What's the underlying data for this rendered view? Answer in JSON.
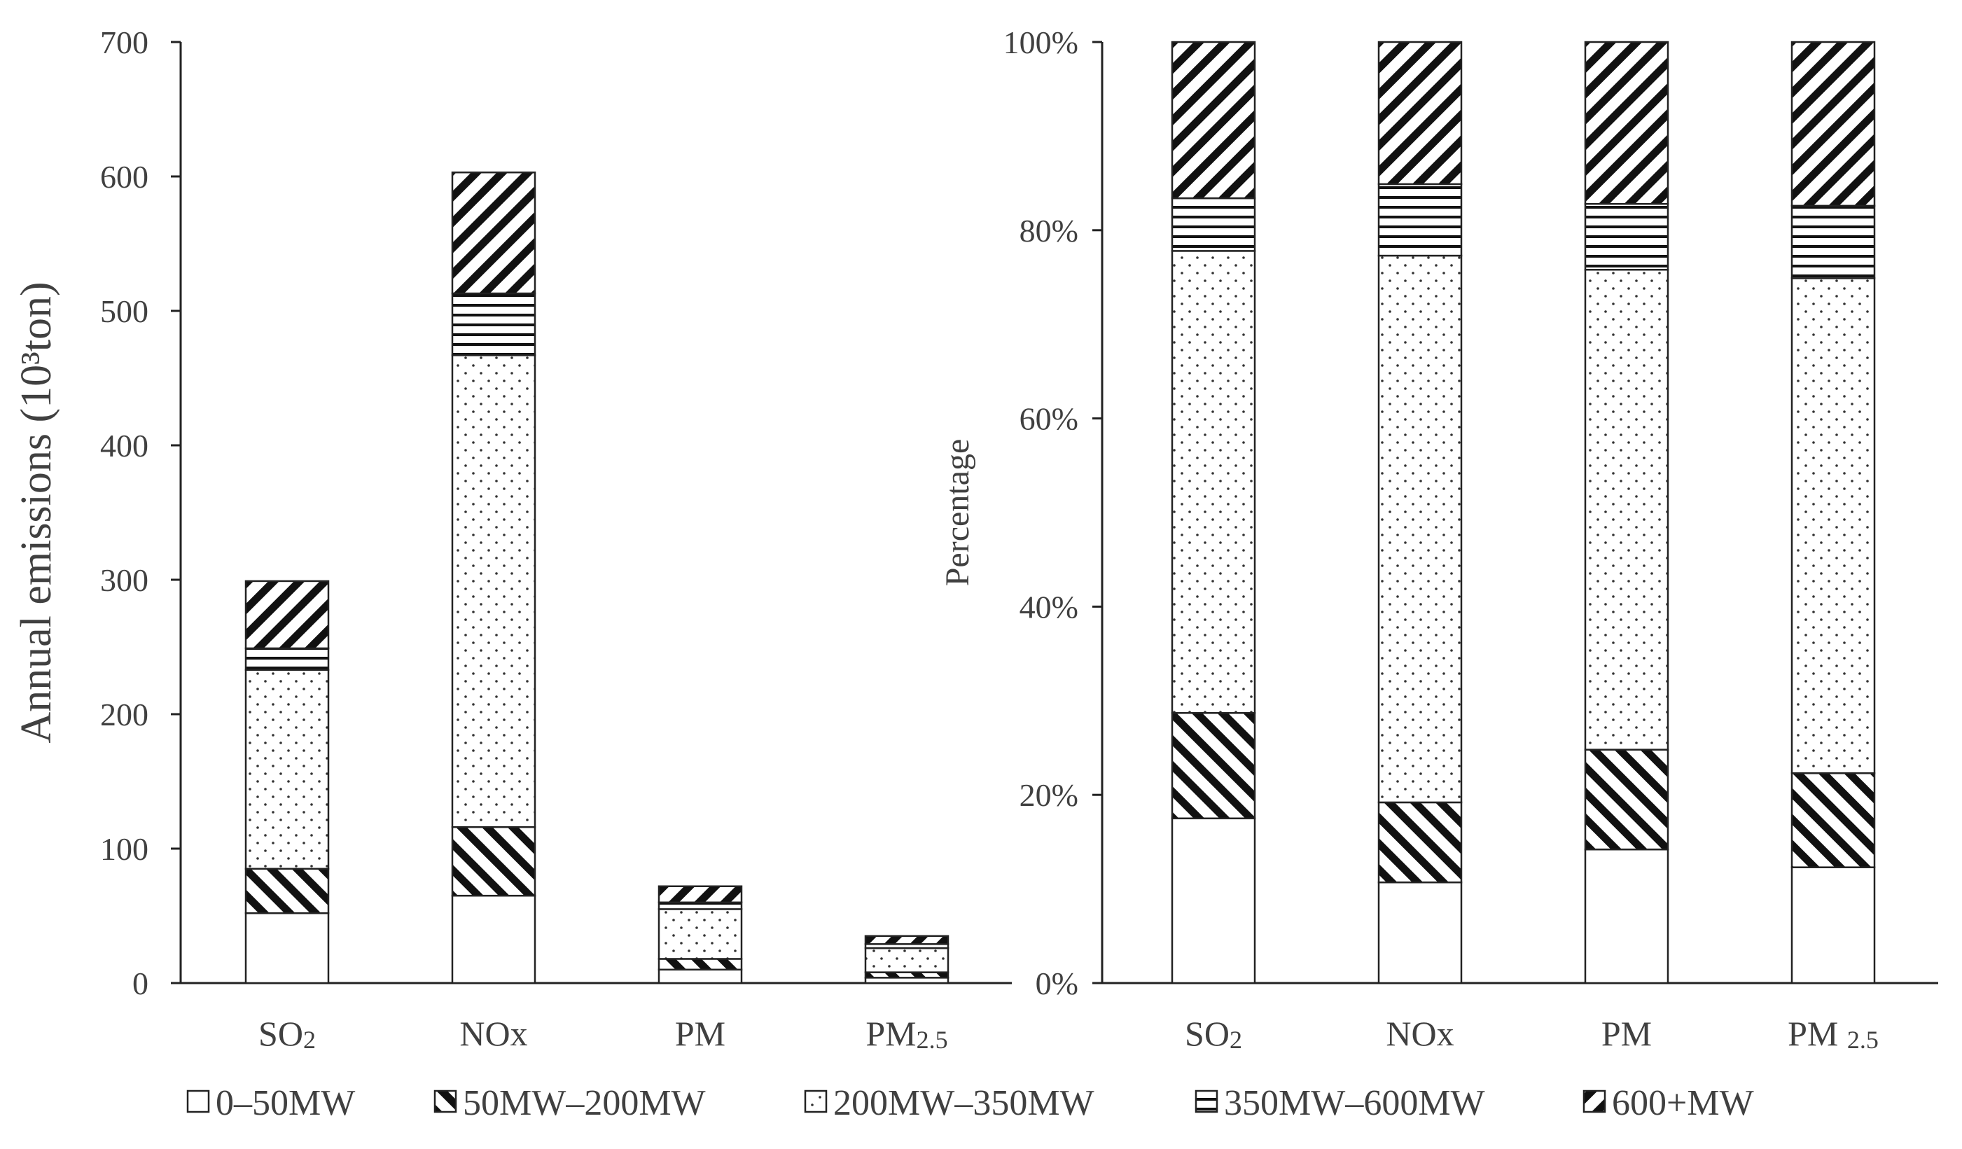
{
  "chart_data": [
    {
      "type": "bar",
      "stacked": true,
      "ylabel": "Annual emissions (10³ton)",
      "ylim": [
        0,
        700
      ],
      "yticks": [
        0,
        100,
        200,
        300,
        400,
        500,
        600,
        700
      ],
      "grid": false,
      "categories": [
        {
          "base": "SO",
          "sub": "2"
        },
        {
          "base": "NOx",
          "sub": ""
        },
        {
          "base": "PM",
          "sub": ""
        },
        {
          "base": "PM",
          "sub": "2.5"
        }
      ],
      "series": [
        {
          "name": "0–50MW",
          "pattern": "blank",
          "values": [
            52,
            65,
            10,
            4
          ]
        },
        {
          "name": "50MW–200MW",
          "pattern": "back-diagonal",
          "values": [
            33,
            51,
            8,
            4
          ]
        },
        {
          "name": "200MW–350MW",
          "pattern": "dots",
          "values": [
            148,
            351,
            37,
            18
          ]
        },
        {
          "name": "350MW–600MW",
          "pattern": "horizontal",
          "values": [
            16,
            46,
            5,
            3
          ]
        },
        {
          "name": "600+MW",
          "pattern": "forward-diagonal",
          "values": [
            50,
            90,
            12,
            6
          ]
        }
      ]
    },
    {
      "type": "bar",
      "stacked": true,
      "ylabel": "Percentage",
      "ylim": [
        0,
        100
      ],
      "yticks": [
        "0%",
        "20%",
        "40%",
        "60%",
        "80%",
        "100%"
      ],
      "grid": false,
      "categories": [
        {
          "base": "SO",
          "sub": "2"
        },
        {
          "base": "NOx",
          "sub": ""
        },
        {
          "base": "PM",
          "sub": ""
        },
        {
          "base": "PM ",
          "sub": "2.5"
        }
      ],
      "series": [
        {
          "name": "0–50MW",
          "pattern": "blank",
          "values": [
            17.5,
            10.7,
            14.2,
            12.3
          ]
        },
        {
          "name": "50MW–200MW",
          "pattern": "back-diagonal",
          "values": [
            11.2,
            8.5,
            10.6,
            10.0
          ]
        },
        {
          "name": "200MW–350MW",
          "pattern": "dots",
          "values": [
            49.1,
            58.1,
            51.0,
            52.6
          ]
        },
        {
          "name": "350MW–600MW",
          "pattern": "horizontal",
          "values": [
            5.6,
            7.6,
            7.0,
            7.7
          ]
        },
        {
          "name": "600+MW",
          "pattern": "forward-diagonal",
          "values": [
            16.6,
            15.1,
            17.2,
            17.4
          ]
        }
      ]
    }
  ],
  "legend": {
    "position": "bottom",
    "items": [
      "0–50MW",
      "50MW–200MW",
      "200MW–350MW",
      "350MW–600MW",
      "600+MW"
    ]
  }
}
